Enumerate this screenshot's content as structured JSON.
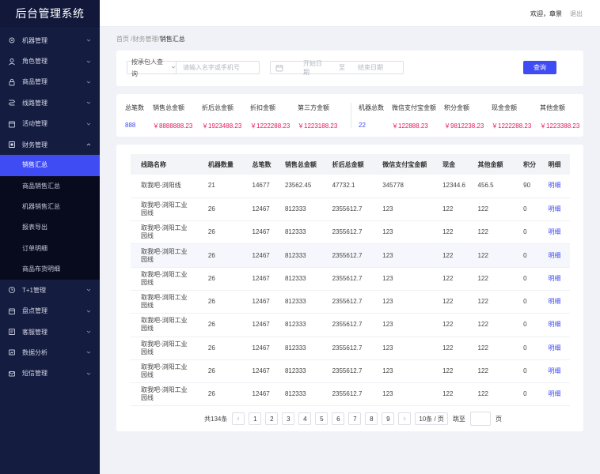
{
  "app": {
    "title": "后台管理系统"
  },
  "header": {
    "welcome": "欢迎，章景",
    "logout": "退出"
  },
  "sidebar": {
    "items": [
      {
        "label": "机器管理",
        "icon": "settings-icon"
      },
      {
        "label": "角色管理",
        "icon": "user-icon"
      },
      {
        "label": "商品管理",
        "icon": "lock-icon"
      },
      {
        "label": "线路管理",
        "icon": "route-icon"
      },
      {
        "label": "活动管理",
        "icon": "calendar-icon"
      },
      {
        "label": "财务管理",
        "icon": "finance-icon"
      }
    ],
    "finance_sub": [
      {
        "label": "销售汇总",
        "active": true
      },
      {
        "label": "商品销售汇总"
      },
      {
        "label": "机器销售汇总"
      },
      {
        "label": "报表导出"
      },
      {
        "label": "订单明细"
      },
      {
        "label": "商品布货明细"
      }
    ],
    "items_after": [
      {
        "label": "T+1管理",
        "icon": "clock-icon"
      },
      {
        "label": "盘点管理",
        "icon": "inventory-icon"
      },
      {
        "label": "客服管理",
        "icon": "service-icon"
      },
      {
        "label": "数据分析",
        "icon": "analytics-icon"
      },
      {
        "label": "短信管理",
        "icon": "message-icon"
      }
    ]
  },
  "breadcrumb": {
    "home": "首页",
    "parent": "财务管理",
    "current": "销售汇总",
    "sep": "/"
  },
  "filter": {
    "select_label": "按承包人查询",
    "search_placeholder": "请输入名字或手机号",
    "date_start_placeholder": "开始日期",
    "date_sep": "至",
    "date_end_placeholder": "结束日期",
    "query_button": "查询"
  },
  "stats": [
    {
      "label": "总笔数",
      "value": "888",
      "color": "blue"
    },
    {
      "label": "销售总金额",
      "value": "￥8888888.23",
      "color": "pink"
    },
    {
      "label": "折后总金额",
      "value": "￥1923488.23",
      "color": "pink"
    },
    {
      "label": "折扣金额",
      "value": "￥1222288.23",
      "color": "pink"
    },
    {
      "label": "第三方金额",
      "value": "￥1223188.23",
      "color": "pink"
    },
    {
      "label": "机器总数",
      "value": "22",
      "color": "blue"
    },
    {
      "label": "微信支付宝金额",
      "value": "￥122888.23",
      "color": "pink"
    },
    {
      "label": "积分金额",
      "value": "￥9812238.23",
      "color": "pink"
    },
    {
      "label": "现金金额",
      "value": "￥1222288.23",
      "color": "pink"
    },
    {
      "label": "其他金额",
      "value": "￥1223388.23",
      "color": "pink"
    }
  ],
  "table": {
    "columns": [
      "线路名称",
      "机器数量",
      "总笔数",
      "销售总金额",
      "折后总金额",
      "微信支付宝金额",
      "现金",
      "其他金额",
      "积分",
      "明细"
    ],
    "rows": [
      [
        "取我吧-浏阳线",
        "21",
        "14677",
        "23562.45",
        "47732.1",
        "345778",
        "12344.6",
        "456.5",
        "90",
        "明细"
      ],
      [
        "取我吧-浏阳工业园线",
        "26",
        "12467",
        "812333",
        "2355612.7",
        "123",
        "122",
        "122",
        "0",
        "明细"
      ],
      [
        "取我吧-浏阳工业园线",
        "26",
        "12467",
        "812333",
        "2355612.7",
        "123",
        "122",
        "122",
        "0",
        "明细"
      ],
      [
        "取我吧-浏阳工业园线",
        "26",
        "12467",
        "812333",
        "2355612.7",
        "123",
        "122",
        "122",
        "0",
        "明细"
      ],
      [
        "取我吧-浏阳工业园线",
        "26",
        "12467",
        "812333",
        "2355612.7",
        "123",
        "122",
        "122",
        "0",
        "明细"
      ],
      [
        "取我吧-浏阳工业园线",
        "26",
        "12467",
        "812333",
        "2355612.7",
        "123",
        "122",
        "122",
        "0",
        "明细"
      ],
      [
        "取我吧-浏阳工业园线",
        "26",
        "12467",
        "812333",
        "2355612.7",
        "123",
        "122",
        "122",
        "0",
        "明细"
      ],
      [
        "取我吧-浏阳工业园线",
        "26",
        "12467",
        "812333",
        "2355612.7",
        "123",
        "122",
        "122",
        "0",
        "明细"
      ],
      [
        "取我吧-浏阳工业园线",
        "26",
        "12467",
        "812333",
        "2355612.7",
        "123",
        "122",
        "122",
        "0",
        "明细"
      ],
      [
        "取我吧-浏阳工业园线",
        "26",
        "12467",
        "812333",
        "2355612.7",
        "123",
        "122",
        "122",
        "0",
        "明细"
      ]
    ],
    "highlight_row": 3
  },
  "pagination": {
    "total": "共134条",
    "pages": [
      "1",
      "2",
      "3",
      "4",
      "5",
      "6",
      "7",
      "8",
      "9"
    ],
    "page_size": "10条 / 页",
    "jump_label": "跳至",
    "jump_suffix": "页"
  }
}
